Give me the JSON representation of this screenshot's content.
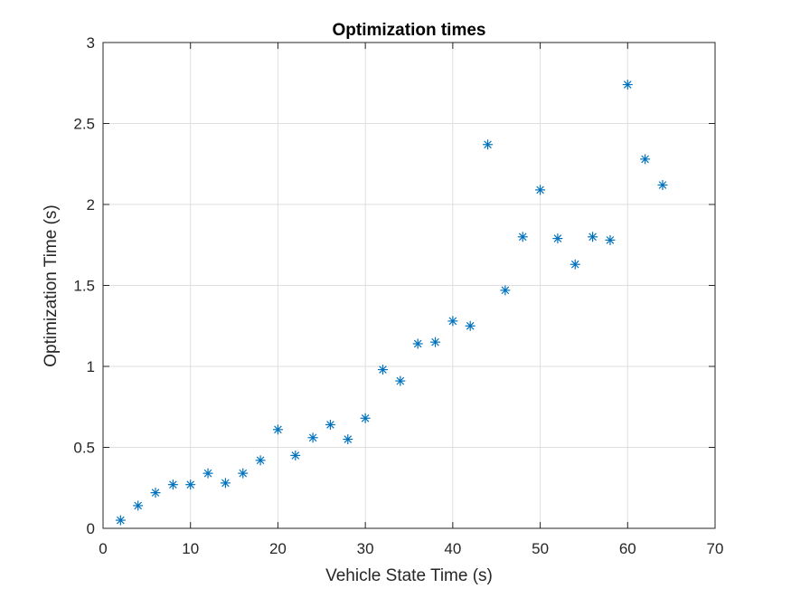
{
  "chart_data": {
    "type": "scatter",
    "title": "Optimization times",
    "xlabel": "Vehicle State Time (s)",
    "ylabel": "Optimization Time (s)",
    "xlim": [
      0,
      70
    ],
    "ylim": [
      0,
      3
    ],
    "xticks": [
      0,
      10,
      20,
      30,
      40,
      50,
      60,
      70
    ],
    "yticks": [
      0,
      0.5,
      1,
      1.5,
      2,
      2.5,
      3
    ],
    "xtick_labels": [
      "0",
      "10",
      "20",
      "30",
      "40",
      "50",
      "60",
      "70"
    ],
    "ytick_labels": [
      "0",
      "0.5",
      "1",
      "1.5",
      "2",
      "2.5",
      "3"
    ],
    "grid": true,
    "marker": "asterisk",
    "series": [
      {
        "color": "#0072BD",
        "x": [
          2,
          4,
          6,
          8,
          10,
          12,
          14,
          16,
          18,
          20,
          22,
          24,
          26,
          28,
          30,
          32,
          34,
          36,
          38,
          40,
          42,
          44,
          46,
          48,
          50,
          52,
          54,
          56,
          58,
          60,
          62,
          64
        ],
        "y": [
          0.05,
          0.14,
          0.22,
          0.27,
          0.27,
          0.34,
          0.28,
          0.34,
          0.42,
          0.61,
          0.45,
          0.56,
          0.64,
          0.55,
          0.68,
          0.98,
          0.91,
          1.14,
          1.15,
          1.28,
          1.25,
          2.37,
          1.47,
          1.8,
          2.09,
          1.79,
          1.63,
          1.8,
          1.78,
          2.74,
          2.28,
          2.12
        ]
      }
    ]
  }
}
